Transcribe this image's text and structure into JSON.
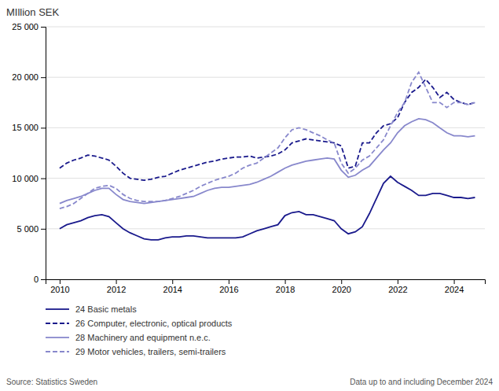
{
  "chart_data": {
    "type": "line",
    "title": "MIllion SEK",
    "annotations": [
      "Source: Statistics Sweden",
      "Data up to and including December 2024"
    ],
    "x": [
      2010.0,
      2010.25,
      2010.5,
      2010.75,
      2011.0,
      2011.25,
      2011.5,
      2011.75,
      2012.0,
      2012.25,
      2012.5,
      2012.75,
      2013.0,
      2013.25,
      2013.5,
      2013.75,
      2014.0,
      2014.25,
      2014.5,
      2014.75,
      2015.0,
      2015.25,
      2015.5,
      2015.75,
      2016.0,
      2016.25,
      2016.5,
      2016.75,
      2017.0,
      2017.25,
      2017.5,
      2017.75,
      2018.0,
      2018.25,
      2018.5,
      2018.75,
      2019.0,
      2019.25,
      2019.5,
      2019.75,
      2020.0,
      2020.25,
      2020.5,
      2020.75,
      2021.0,
      2021.25,
      2021.5,
      2021.75,
      2022.0,
      2022.25,
      2022.5,
      2022.75,
      2023.0,
      2023.25,
      2023.5,
      2023.75,
      2024.0,
      2024.25,
      2024.5,
      2024.75
    ],
    "series": [
      {
        "name": "24 Basic metals",
        "color": "#1a1a8c",
        "line_style": "solid",
        "values": [
          5000,
          5400,
          5600,
          5800,
          6100,
          6300,
          6400,
          6200,
          5600,
          5000,
          4600,
          4300,
          4000,
          3900,
          3900,
          4100,
          4200,
          4200,
          4300,
          4300,
          4200,
          4100,
          4100,
          4100,
          4100,
          4100,
          4200,
          4500,
          4800,
          5000,
          5200,
          5400,
          6300,
          6600,
          6700,
          6400,
          6400,
          6200,
          6000,
          5800,
          5000,
          4500,
          4700,
          5200,
          6500,
          8000,
          9500,
          10200,
          9600,
          9200,
          8800,
          8300,
          8300,
          8500,
          8500,
          8300,
          8100,
          8100,
          8000,
          8100
        ]
      },
      {
        "name": "26 Computer, electronic, optical products",
        "color": "#1a1a8c",
        "line_style": "dashed",
        "values": [
          11000,
          11500,
          11800,
          12000,
          12300,
          12200,
          12000,
          11800,
          11200,
          10500,
          10000,
          9900,
          9800,
          9900,
          10100,
          10200,
          10500,
          10800,
          11000,
          11200,
          11400,
          11600,
          11700,
          11900,
          12000,
          12100,
          12100,
          12200,
          12000,
          12100,
          12200,
          12400,
          12800,
          13500,
          13700,
          13900,
          13800,
          13700,
          13600,
          13500,
          13200,
          11000,
          11200,
          13500,
          13500,
          14500,
          15200,
          15400,
          16000,
          17500,
          18500,
          19000,
          19800,
          19000,
          18000,
          18500,
          17800,
          17500,
          17300,
          17500
        ]
      },
      {
        "name": "28 Machinery and equipment n.e.c.",
        "color": "#8888cc",
        "line_style": "solid",
        "values": [
          7500,
          7800,
          8000,
          8200,
          8500,
          8800,
          9000,
          9000,
          8400,
          7900,
          7700,
          7600,
          7500,
          7600,
          7700,
          7800,
          7900,
          8000,
          8100,
          8200,
          8500,
          8800,
          9000,
          9100,
          9100,
          9200,
          9300,
          9400,
          9600,
          9900,
          10200,
          10600,
          11000,
          11300,
          11500,
          11700,
          11800,
          11900,
          12000,
          11900,
          10800,
          10100,
          10300,
          10800,
          11200,
          12000,
          12800,
          13500,
          14500,
          15200,
          15600,
          15900,
          15800,
          15500,
          15000,
          14500,
          14200,
          14200,
          14100,
          14200
        ]
      },
      {
        "name": "29 Motor vehicles, trailers, semi-trailers",
        "color": "#8888cc",
        "line_style": "dashed",
        "values": [
          7000,
          7200,
          7500,
          8000,
          8500,
          9000,
          9200,
          9300,
          9000,
          8400,
          8000,
          7800,
          7700,
          7700,
          7700,
          7800,
          8000,
          8200,
          8500,
          8800,
          9200,
          9500,
          9800,
          10000,
          10200,
          10500,
          11000,
          11300,
          11500,
          12000,
          12500,
          13000,
          14000,
          14800,
          15000,
          14800,
          14500,
          14200,
          13800,
          13500,
          11500,
          10500,
          11000,
          11800,
          12200,
          13000,
          13800,
          15200,
          16500,
          17500,
          19500,
          20500,
          19000,
          17500,
          17500,
          17000,
          17500,
          17500,
          17300,
          17500
        ]
      }
    ],
    "xlim": [
      2009.5,
      2025.1
    ],
    "xticks": [
      2010,
      2012,
      2014,
      2016,
      2018,
      2020,
      2022,
      2024
    ],
    "ylim": [
      0,
      25000
    ],
    "yticks": [
      0,
      {
        "value": 5000,
        "label": "5 000"
      },
      {
        "value": 10000,
        "label": "10 000"
      },
      {
        "value": 15000,
        "label": "15 000"
      },
      {
        "value": 20000,
        "label": "20 000"
      },
      {
        "value": 25000,
        "label": "25 000"
      }
    ],
    "grid": "y",
    "legend": "bottom"
  }
}
